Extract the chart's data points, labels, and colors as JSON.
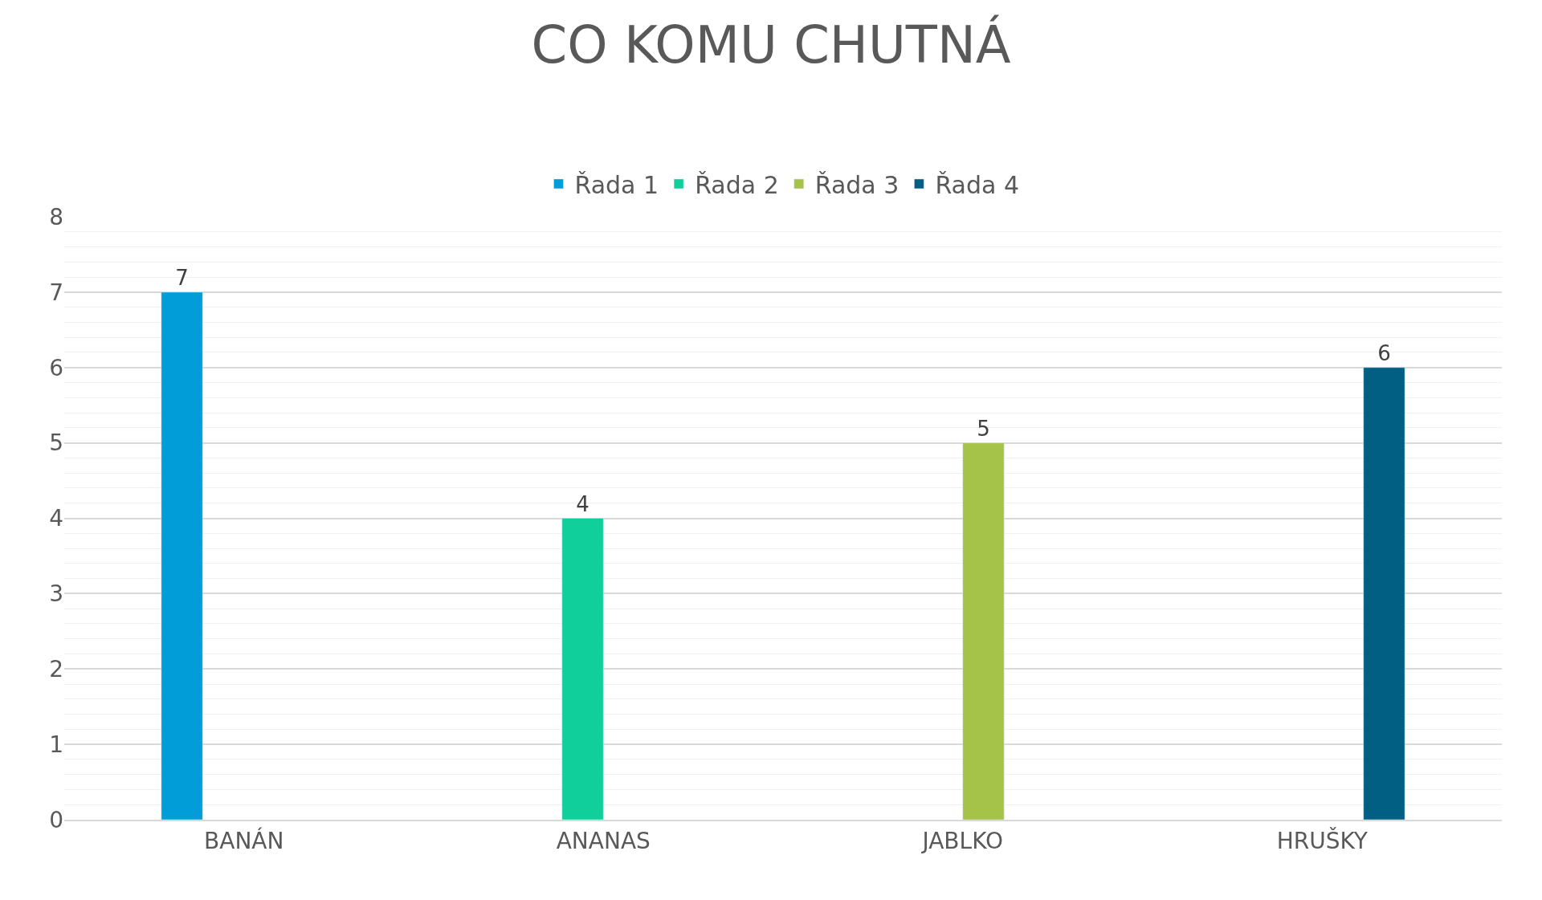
{
  "chart_data": {
    "type": "bar",
    "title": "CO KOMU CHUTNÁ",
    "categories": [
      "BANÁN",
      "ANANAS",
      "JABLKO",
      "HRUŠKY"
    ],
    "series": [
      {
        "name": "Řada 1",
        "color": "#009dd9",
        "values": [
          7,
          null,
          null,
          null
        ]
      },
      {
        "name": "Řada 2",
        "color": "#10cf9b",
        "values": [
          null,
          4,
          null,
          null
        ]
      },
      {
        "name": "Řada 3",
        "color": "#a5c249",
        "values": [
          null,
          null,
          5,
          null
        ]
      },
      {
        "name": "Řada 4",
        "color": "#005f83",
        "values": [
          null,
          null,
          null,
          6
        ]
      }
    ],
    "ylim": [
      0,
      8
    ],
    "yticks": [
      0,
      1,
      2,
      3,
      4,
      5,
      6,
      7,
      8
    ],
    "grid": "y",
    "legend": "top",
    "data_labels": true
  }
}
